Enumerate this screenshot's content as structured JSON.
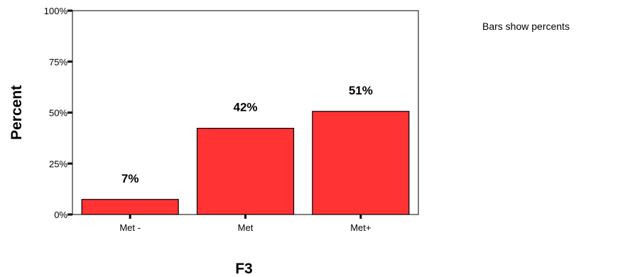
{
  "chart_data": {
    "type": "bar",
    "categories": [
      "Met -",
      "Met",
      "Met+"
    ],
    "values": [
      7.4,
      42.3,
      50.6
    ],
    "data_labels": [
      "7%",
      "42%",
      "51%"
    ],
    "title": "",
    "xlabel": "F3",
    "ylabel": "Percent",
    "ylim": [
      0,
      100
    ],
    "yticks": [
      0,
      25,
      50,
      75,
      100
    ],
    "ytick_labels": [
      "0%",
      "25%",
      "50%",
      "75%",
      "100%"
    ],
    "grid": false,
    "bar_color": "#ff3333",
    "bar_edge_color": "#000000",
    "note": "Bars show percents"
  }
}
